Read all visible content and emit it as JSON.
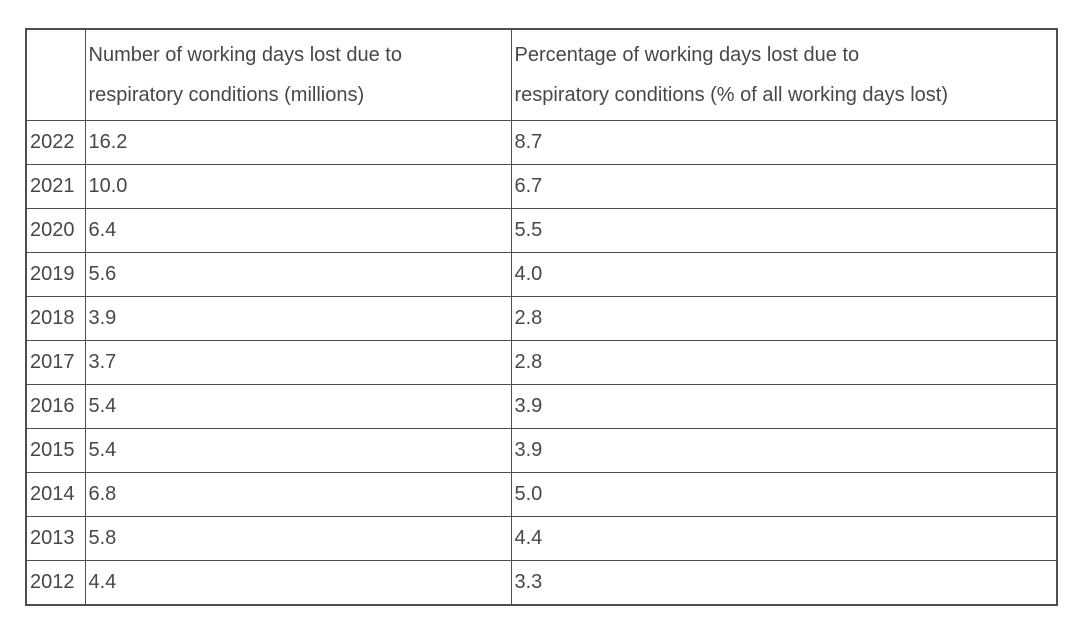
{
  "colors": {
    "background": "#ffffff",
    "text": "#46484d",
    "border": "#4c4e52"
  },
  "table": {
    "columns": [
      {
        "label": ""
      },
      {
        "label": "Number of working days lost due to\nrespiratory conditions (millions)"
      },
      {
        "label": "Percentage of working days lost due to\nrespiratory conditions (% of all working days lost)"
      }
    ],
    "rows": [
      {
        "year": "2022",
        "days_lost_millions": "16.2",
        "percentage": "8.7"
      },
      {
        "year": "2021",
        "days_lost_millions": "10.0",
        "percentage": "6.7"
      },
      {
        "year": "2020",
        "days_lost_millions": "6.4",
        "percentage": "5.5"
      },
      {
        "year": "2019",
        "days_lost_millions": "5.6",
        "percentage": "4.0"
      },
      {
        "year": "2018",
        "days_lost_millions": "3.9",
        "percentage": "2.8"
      },
      {
        "year": "2017",
        "days_lost_millions": "3.7",
        "percentage": "2.8"
      },
      {
        "year": "2016",
        "days_lost_millions": "5.4",
        "percentage": "3.9"
      },
      {
        "year": "2015",
        "days_lost_millions": "5.4",
        "percentage": "3.9"
      },
      {
        "year": "2014",
        "days_lost_millions": "6.8",
        "percentage": "5.0"
      },
      {
        "year": "2013",
        "days_lost_millions": "5.8",
        "percentage": "4.4"
      },
      {
        "year": "2012",
        "days_lost_millions": "4.4",
        "percentage": "3.3"
      }
    ]
  },
  "chart_data": {
    "type": "table",
    "columns": [
      "",
      "Number of working days lost due to respiratory conditions (millions)",
      "Percentage of working days lost due to respiratory conditions (% of all working days lost)"
    ],
    "rows": [
      [
        "2022",
        16.2,
        8.7
      ],
      [
        "2021",
        10.0,
        6.7
      ],
      [
        "2020",
        6.4,
        5.5
      ],
      [
        "2019",
        5.6,
        4.0
      ],
      [
        "2018",
        3.9,
        2.8
      ],
      [
        "2017",
        3.7,
        2.8
      ],
      [
        "2016",
        5.4,
        3.9
      ],
      [
        "2015",
        5.4,
        3.9
      ],
      [
        "2014",
        6.8,
        5.0
      ],
      [
        "2013",
        5.8,
        4.4
      ],
      [
        "2012",
        4.4,
        3.3
      ]
    ]
  }
}
